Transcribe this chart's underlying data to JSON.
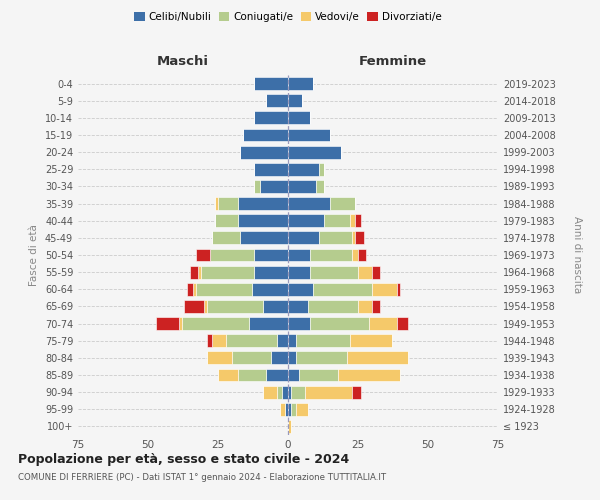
{
  "age_groups": [
    "0-4",
    "5-9",
    "10-14",
    "15-19",
    "20-24",
    "25-29",
    "30-34",
    "35-39",
    "40-44",
    "45-49",
    "50-54",
    "55-59",
    "60-64",
    "65-69",
    "70-74",
    "75-79",
    "80-84",
    "85-89",
    "90-94",
    "95-99",
    "100+"
  ],
  "birth_years": [
    "2019-2023",
    "2014-2018",
    "2009-2013",
    "2004-2008",
    "1999-2003",
    "1994-1998",
    "1989-1993",
    "1984-1988",
    "1979-1983",
    "1974-1978",
    "1969-1973",
    "1964-1968",
    "1959-1963",
    "1954-1958",
    "1949-1953",
    "1944-1948",
    "1939-1943",
    "1934-1938",
    "1929-1933",
    "1924-1928",
    "≤ 1923"
  ],
  "colors": {
    "celibe": "#3d6fa8",
    "coniugato": "#b5cc8e",
    "vedovo": "#f5c96a",
    "divorziato": "#cc2222"
  },
  "maschi": {
    "celibe": [
      12,
      8,
      12,
      16,
      17,
      12,
      10,
      18,
      18,
      17,
      12,
      12,
      13,
      9,
      14,
      4,
      6,
      8,
      2,
      1,
      0
    ],
    "coniugato": [
      0,
      0,
      0,
      0,
      0,
      0,
      2,
      7,
      8,
      10,
      16,
      19,
      20,
      20,
      24,
      18,
      14,
      10,
      2,
      0,
      0
    ],
    "vedovo": [
      0,
      0,
      0,
      0,
      0,
      0,
      0,
      1,
      0,
      0,
      0,
      1,
      1,
      1,
      1,
      5,
      9,
      7,
      5,
      2,
      0
    ],
    "divorziato": [
      0,
      0,
      0,
      0,
      0,
      0,
      0,
      0,
      0,
      0,
      5,
      3,
      2,
      7,
      8,
      2,
      0,
      0,
      0,
      0,
      0
    ]
  },
  "femmine": {
    "celibe": [
      9,
      5,
      8,
      15,
      19,
      11,
      10,
      15,
      13,
      11,
      8,
      8,
      9,
      7,
      8,
      3,
      3,
      4,
      1,
      1,
      0
    ],
    "coniugato": [
      0,
      0,
      0,
      0,
      0,
      2,
      3,
      9,
      9,
      12,
      15,
      17,
      21,
      18,
      21,
      19,
      18,
      14,
      5,
      2,
      0
    ],
    "vedovo": [
      0,
      0,
      0,
      0,
      0,
      0,
      0,
      0,
      2,
      1,
      2,
      5,
      9,
      5,
      10,
      15,
      22,
      22,
      17,
      4,
      1
    ],
    "divorziato": [
      0,
      0,
      0,
      0,
      0,
      0,
      0,
      0,
      2,
      3,
      3,
      3,
      1,
      3,
      4,
      0,
      0,
      0,
      3,
      0,
      0
    ]
  },
  "xlim": 75,
  "title": "Popolazione per età, sesso e stato civile - 2024",
  "subtitle": "COMUNE DI FERRIERE (PC) - Dati ISTAT 1° gennaio 2024 - Elaborazione TUTTITALIA.IT",
  "ylabel_left": "Fasce di età",
  "ylabel_right": "Anni di nascita",
  "xlabel_left": "Maschi",
  "xlabel_right": "Femmine",
  "legend_labels": [
    "Celibi/Nubili",
    "Coniugati/e",
    "Vedovi/e",
    "Divorziati/e"
  ],
  "bg_color": "#f5f5f5",
  "grid_color": "#cccccc"
}
